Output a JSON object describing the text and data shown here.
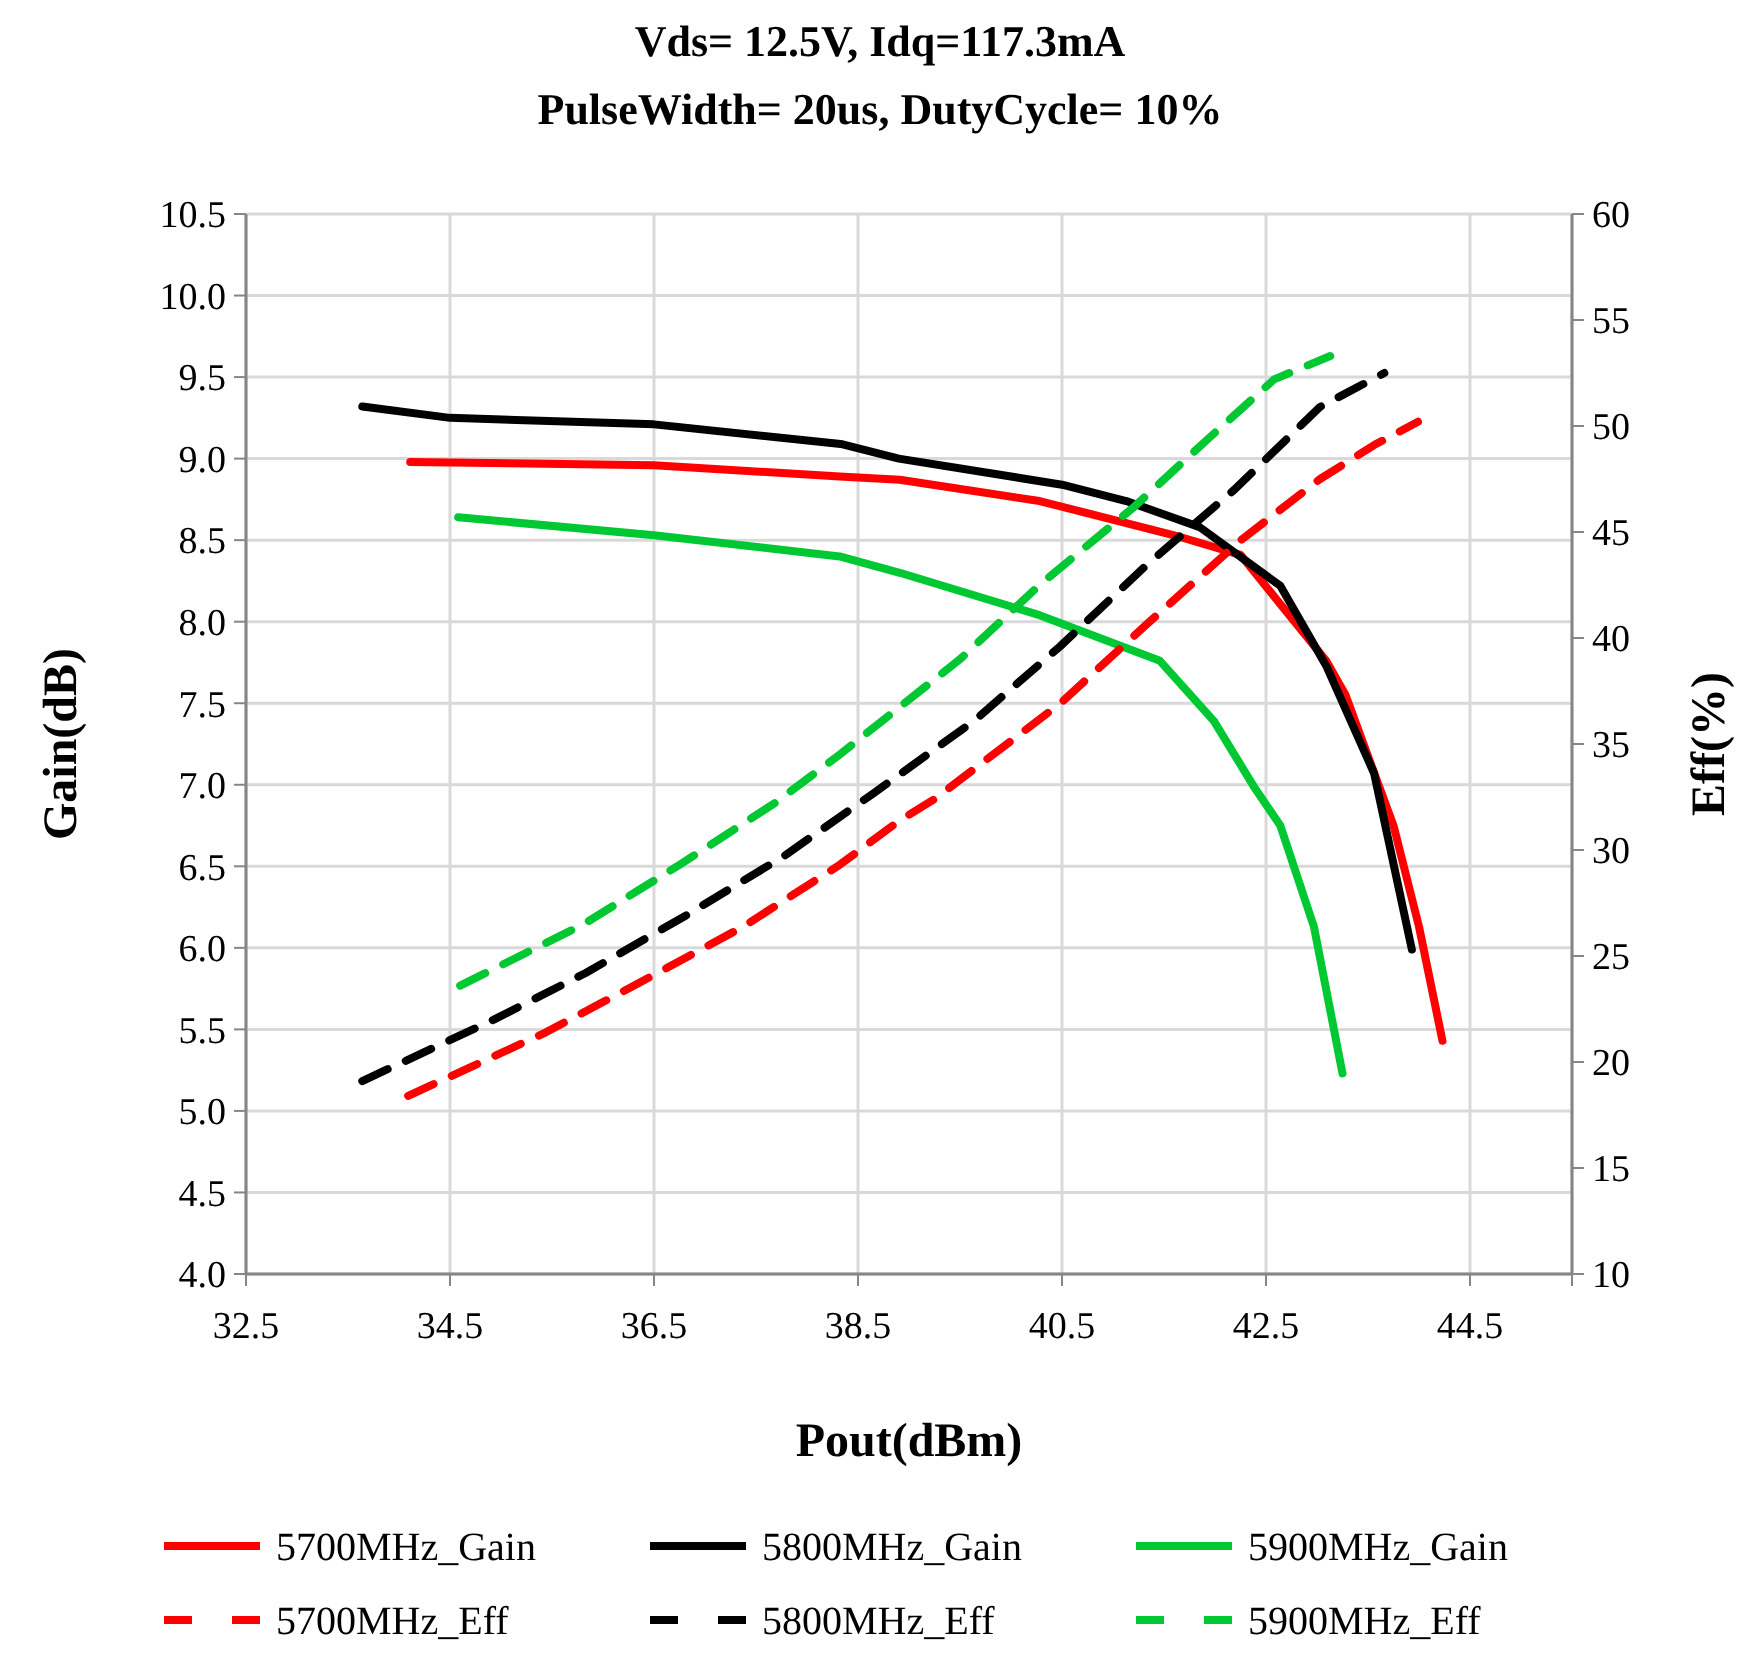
{
  "chart_data": {
    "type": "line",
    "title": "Vds= 12.5V, Idq=117.3mA\nPulseWidth= 20us, DutyCycle= 10%",
    "xlabel": "Pout(dBm)",
    "ylabel": "Gain(dB)",
    "y2label": "Eff(%)",
    "xlim": [
      32.5,
      45.5
    ],
    "xticks": [
      32.5,
      34.5,
      36.5,
      38.5,
      40.5,
      42.5,
      44.5,
      {
        "value": 45.5,
        "label": null
      }
    ],
    "ylim": [
      4,
      10.5
    ],
    "yticks": [
      {
        "value": 4,
        "label": "4.0"
      },
      4.5,
      {
        "value": 5,
        "label": "5.0"
      },
      5.5,
      {
        "value": 6,
        "label": "6.0"
      },
      6.5,
      {
        "value": 7,
        "label": "7.0"
      },
      7.5,
      {
        "value": 8,
        "label": "8.0"
      },
      8.5,
      {
        "value": 9,
        "label": "9.0"
      },
      9.5,
      {
        "value": 10,
        "label": "10.0"
      },
      10.5
    ],
    "y2lim": [
      10,
      60
    ],
    "y2ticks": [
      10,
      15,
      20,
      25,
      30,
      35,
      40,
      45,
      50,
      55,
      60
    ],
    "grid": true,
    "legend": "bottom",
    "marker": "none",
    "series": [
      {
        "name": "5700MHz_Gain",
        "color": "#ff0000",
        "line_style": "solid",
        "x": [
          34.11,
          36.5,
          38.32,
          38.91,
          40.28,
          41.6,
          42.25,
          43.09,
          43.28,
          43.75,
          44.0,
          44.23
        ],
        "values": [
          8.98,
          8.96,
          8.89,
          8.87,
          8.74,
          8.53,
          8.41,
          7.76,
          7.55,
          6.75,
          6.13,
          5.43
        ]
      },
      {
        "name": "5800MHz_Gain",
        "color": "#000000",
        "line_style": "solid",
        "x": [
          33.64,
          34.5,
          36.5,
          38.33,
          38.9,
          40.5,
          41.13,
          41.85,
          42.64,
          43.09,
          43.56,
          43.93
        ],
        "values": [
          9.32,
          9.25,
          9.21,
          9.09,
          9.0,
          8.84,
          8.74,
          8.58,
          8.22,
          7.73,
          7.07,
          5.99
        ]
      },
      {
        "name": "5900MHz_Gain",
        "color": "#00c832",
        "line_style": "solid",
        "x": [
          34.58,
          36.5,
          38.32,
          38.91,
          40.28,
          41.46,
          41.99,
          42.38,
          42.64,
          42.97,
          43.25
        ],
        "values": [
          8.64,
          8.53,
          8.4,
          8.3,
          8.04,
          7.76,
          7.39,
          6.99,
          6.75,
          6.13,
          5.23
        ]
      },
      {
        "name": "5700MHz_Eff",
        "color": "#ff0000",
        "line_style": "dashed",
        "axis": "y2",
        "x": [
          34.09,
          35.44,
          36.42,
          37.38,
          38.32,
          38.91,
          39.25,
          40.48,
          41.32,
          42.25,
          43.03,
          43.56,
          43.99
        ],
        "values": [
          18.4,
          21.4,
          23.9,
          26.4,
          29.3,
          31.4,
          32.4,
          36.9,
          40.6,
          44.6,
          47.5,
          49.1,
          50.2
        ]
      },
      {
        "name": "5800MHz_Eff",
        "color": "#000000",
        "line_style": "dashed",
        "axis": "y2",
        "x": [
          33.64,
          34.93,
          35.83,
          36.81,
          37.77,
          38.66,
          39.64,
          40.48,
          41.32,
          42.19,
          43.03,
          43.66
        ],
        "values": [
          19.1,
          22.0,
          24.2,
          26.9,
          29.7,
          32.7,
          36.1,
          39.6,
          43.4,
          47.0,
          50.9,
          52.5
        ]
      },
      {
        "name": "5900MHz_Eff",
        "color": "#00c832",
        "line_style": "dashed",
        "axis": "y2",
        "x": [
          34.6,
          35.81,
          36.75,
          37.68,
          38.32,
          39.5,
          40.28,
          41.21,
          41.91,
          42.58,
          43.13
        ],
        "values": [
          23.6,
          26.5,
          29.3,
          32.2,
          34.5,
          39.0,
          42.5,
          46.2,
          49.3,
          52.2,
          53.3
        ]
      }
    ]
  }
}
